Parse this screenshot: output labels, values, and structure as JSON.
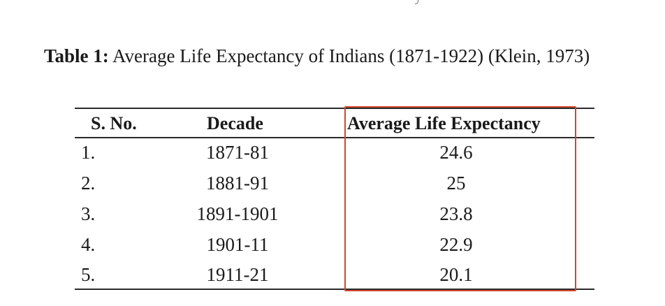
{
  "caption": {
    "label": "Table 1:",
    "text": " Average Life Expectancy of Indians (1871-1922) (Klein, 1973)"
  },
  "table": {
    "headers": [
      "S. No.",
      "Decade",
      "Average Life Expectancy"
    ],
    "rows": [
      {
        "sno": "1.",
        "decade": "1871-81",
        "ale": "24.6"
      },
      {
        "sno": "2.",
        "decade": "1881-91",
        "ale": "25"
      },
      {
        "sno": "3.",
        "decade": "1891-1901",
        "ale": "23.8"
      },
      {
        "sno": "4.",
        "decade": "1901-11",
        "ale": "22.9"
      },
      {
        "sno": "5.",
        "decade": "1911-21",
        "ale": "20.1"
      }
    ]
  },
  "colors": {
    "highlight_box": "#d0472f",
    "rule": "#2a2a2a",
    "text": "#1a1a1a"
  }
}
